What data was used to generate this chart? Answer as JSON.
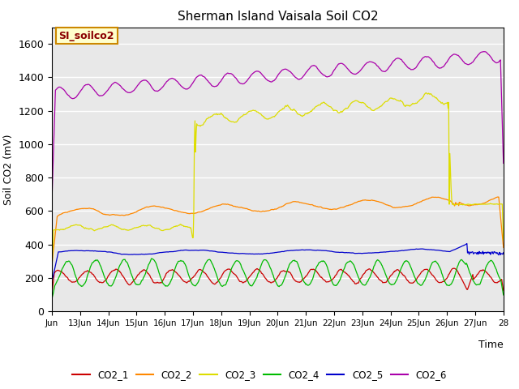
{
  "title": "Sherman Island Vaisala Soil CO2",
  "ylabel": "Soil CO2 (mV)",
  "xlabel": "Time",
  "annotation_text": "SI_soilco2",
  "ylim": [
    0,
    1700
  ],
  "yticks": [
    0,
    200,
    400,
    600,
    800,
    1000,
    1200,
    1400,
    1600
  ],
  "background_color": "#e8e8e8",
  "grid_color": "#ffffff",
  "legend_entries": [
    "CO2_1",
    "CO2_2",
    "CO2_3",
    "CO2_4",
    "CO2_5",
    "CO2_6"
  ],
  "colors": {
    "CO2_1": "#cc0000",
    "CO2_2": "#ff8800",
    "CO2_3": "#dddd00",
    "CO2_4": "#00bb00",
    "CO2_5": "#0000cc",
    "CO2_6": "#aa00aa"
  },
  "annotation_box_facecolor": "#ffffcc",
  "annotation_box_edgecolor": "#cc8800",
  "xtick_labels": [
    "Jun",
    "13Jun",
    "14Jun",
    "15Jun",
    "16Jun",
    "17Jun",
    "18Jun",
    "19Jun",
    "20Jun",
    "21Jun",
    "22Jun",
    "23Jun",
    "24Jun",
    "25Jun",
    "26Jun",
    "27Jun",
    "28"
  ]
}
